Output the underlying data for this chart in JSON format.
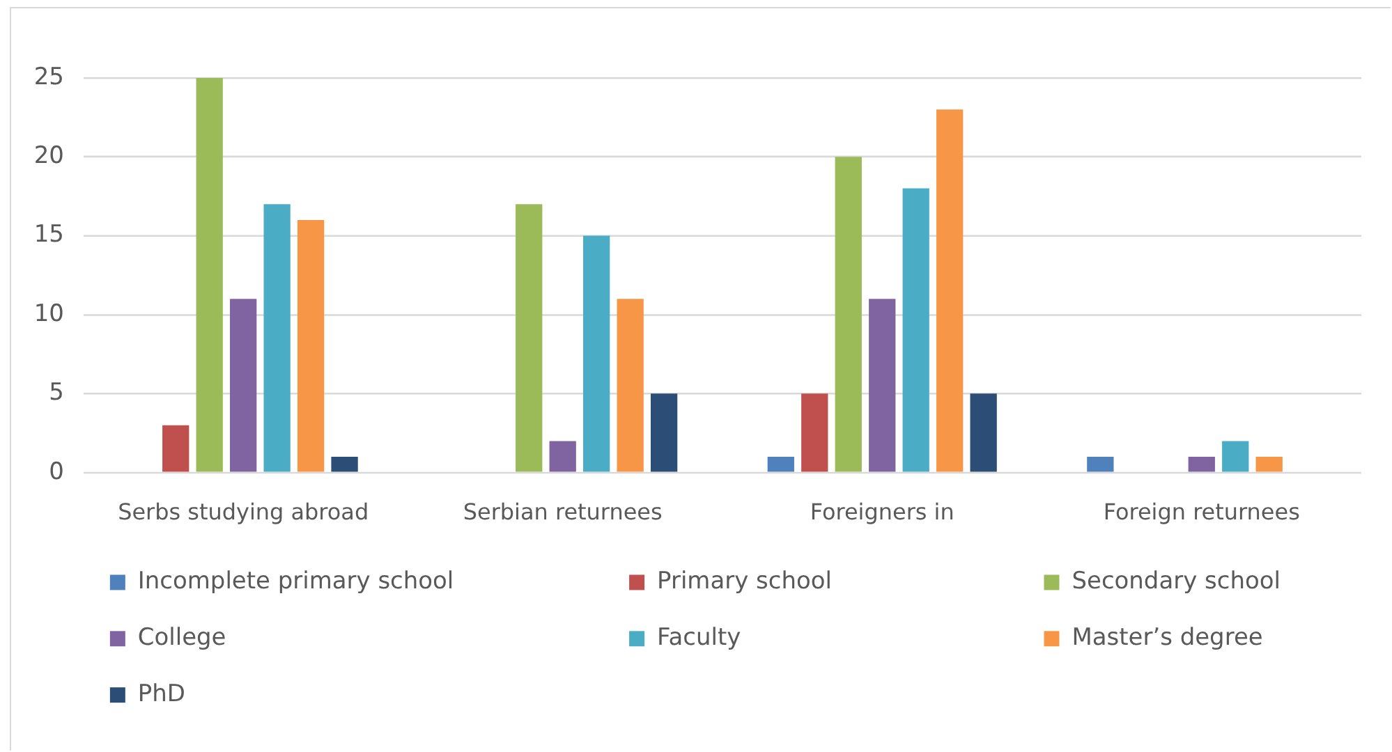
{
  "chart_data": {
    "type": "bar",
    "categories": [
      "Serbs studying abroad",
      "Serbian returnees",
      "Foreigners in",
      "Foreign returnees"
    ],
    "series": [
      {
        "name": "Incomplete primary school",
        "color": "#4f81bd",
        "values": [
          0,
          0,
          1,
          1
        ]
      },
      {
        "name": "Primary school",
        "color": "#c0504d",
        "values": [
          3,
          0,
          5,
          0
        ]
      },
      {
        "name": "Secondary school",
        "color": "#9bbb59",
        "values": [
          25,
          17,
          20,
          0
        ]
      },
      {
        "name": "College",
        "color": "#8064a2",
        "values": [
          11,
          2,
          11,
          1
        ]
      },
      {
        "name": "Faculty",
        "color": "#4bacc6",
        "values": [
          17,
          15,
          18,
          2
        ]
      },
      {
        "name": "Master’s degree",
        "color": "#f79646",
        "values": [
          16,
          11,
          23,
          1
        ]
      },
      {
        "name": "PhD",
        "color": "#2c4d75",
        "values": [
          1,
          5,
          5,
          0
        ]
      }
    ],
    "ylim": [
      0,
      25
    ],
    "yticks": [
      0,
      5,
      10,
      15,
      20,
      25
    ],
    "grid": "y",
    "legend": "bottom"
  }
}
